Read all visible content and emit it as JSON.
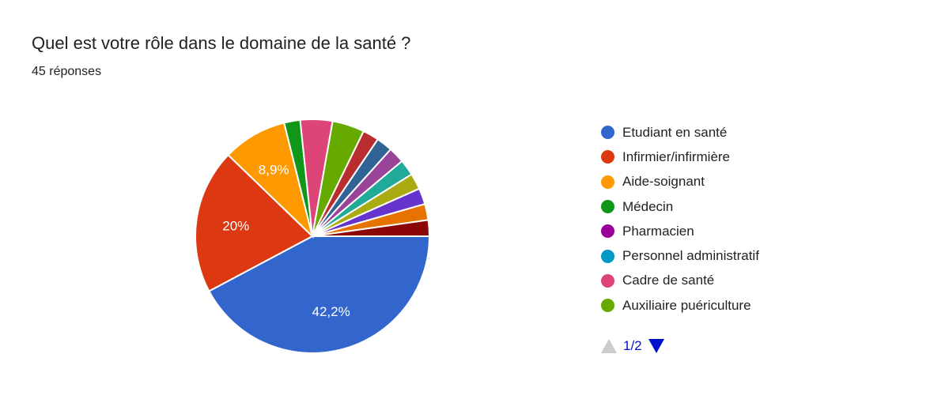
{
  "title": "Quel est votre rôle dans le domaine de la santé ?",
  "subtitle": "45 réponses",
  "chart_data": {
    "type": "pie",
    "start_angle_deg": 90,
    "legend_position": "right",
    "slices": [
      {
        "label": "Etudiant en santé",
        "value": 19,
        "pct_label": "42,2%",
        "color": "#3366cc"
      },
      {
        "label": "Infirmier/infirmière",
        "value": 9,
        "pct_label": "20%",
        "color": "#dc3912"
      },
      {
        "label": "Aide-soignant",
        "value": 4,
        "pct_label": "8,9%",
        "color": "#ff9900"
      },
      {
        "label": "Médecin",
        "value": 1,
        "color": "#109618"
      },
      {
        "label": "Pharmacien",
        "value": 0,
        "color": "#990099"
      },
      {
        "label": "Personnel administratif",
        "value": 0,
        "color": "#0099c6"
      },
      {
        "label": "Cadre de santé",
        "value": 2,
        "color": "#dd4477"
      },
      {
        "label": "Auxiliaire puériculture",
        "value": 2,
        "color": "#66aa00"
      },
      {
        "value": 1,
        "color": "#b82e2e"
      },
      {
        "value": 1,
        "color": "#316395"
      },
      {
        "value": 1,
        "color": "#994499"
      },
      {
        "value": 1,
        "color": "#22aa99"
      },
      {
        "value": 1,
        "color": "#aaaa11"
      },
      {
        "value": 1,
        "color": "#6633cc"
      },
      {
        "value": 1,
        "color": "#e67300"
      },
      {
        "value": 1,
        "color": "#8b0707"
      }
    ]
  },
  "legend_items": [
    "Etudiant en santé",
    "Infirmier/infirmière",
    "Aide-soignant",
    "Médecin",
    "Pharmacien",
    "Personnel administratif",
    "Cadre de santé",
    "Auxiliaire puériculture"
  ],
  "pager": {
    "label": "1/2",
    "current": 1,
    "total": 2
  }
}
